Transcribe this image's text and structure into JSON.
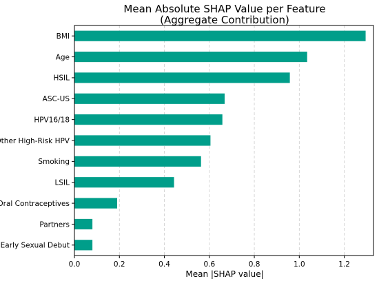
{
  "chart_data": {
    "type": "bar",
    "orientation": "horizontal",
    "title": "Mean Absolute SHAP Value per Feature",
    "subtitle": "(Aggregate Contribution)",
    "xlabel": "Mean |SHAP value|",
    "ylabel": "",
    "xlim": [
      0,
      1.33
    ],
    "xticks": [
      0.0,
      0.2,
      0.4,
      0.6,
      0.8,
      1.0,
      1.2
    ],
    "xtick_labels": [
      "0.0",
      "0.2",
      "0.4",
      "0.6",
      "0.8",
      "1.0",
      "1.2"
    ],
    "grid": "vertical dashed",
    "bar_color": "#009e8a",
    "categories": [
      "BMI",
      "Age",
      "HSIL",
      "ASC-US",
      "HPV16/18",
      "Other High-Risk HPV",
      "Smoking",
      "LSIL",
      "Oral Contraceptives",
      "Partners",
      "Early Sexual Debut"
    ],
    "values": [
      1.295,
      1.035,
      0.958,
      0.668,
      0.658,
      0.605,
      0.563,
      0.443,
      0.19,
      0.08,
      0.08
    ]
  }
}
